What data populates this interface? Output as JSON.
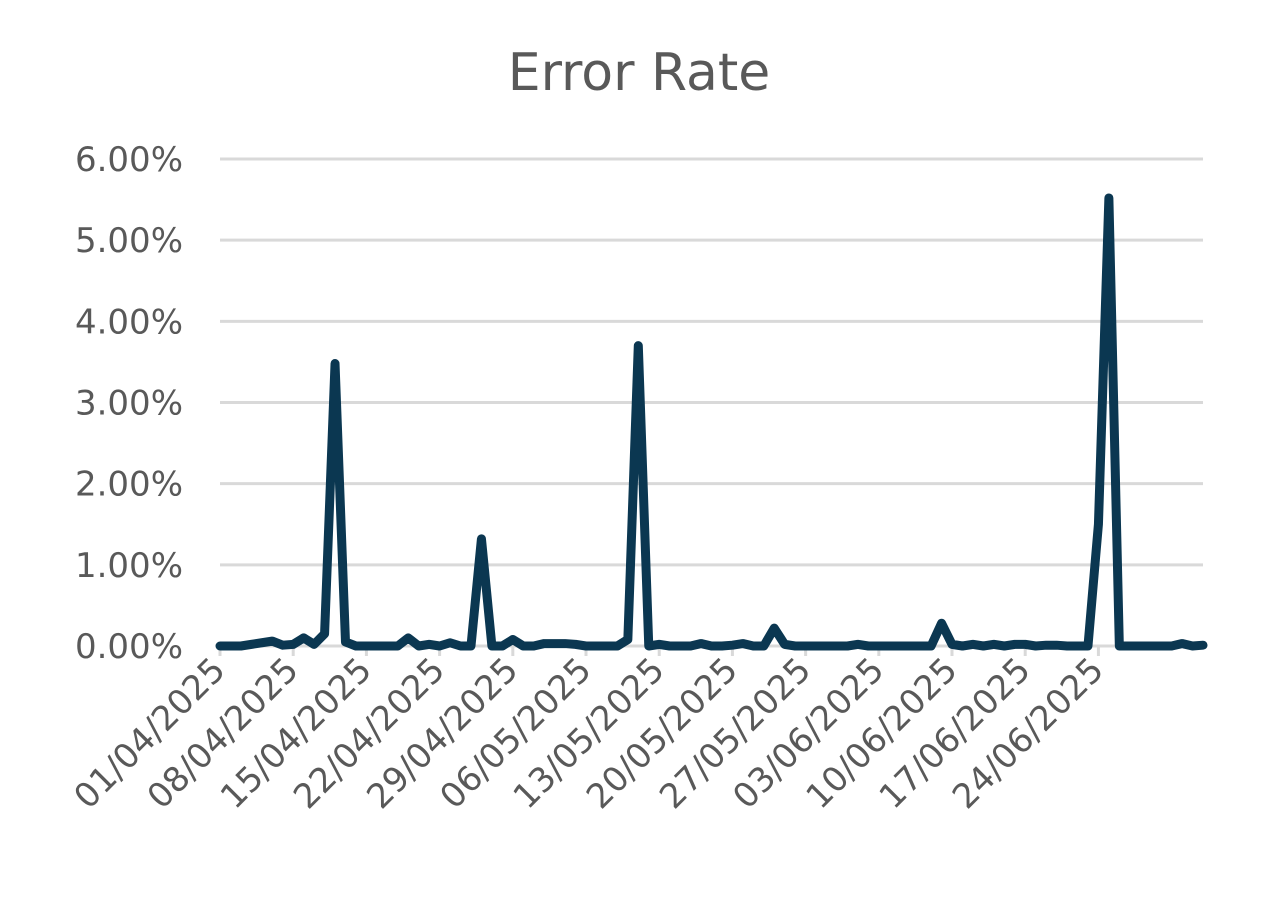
{
  "chart_data": {
    "type": "line",
    "title": "Error Rate",
    "xlabel": "",
    "ylabel": "",
    "ylim": [
      0,
      6
    ],
    "y_ticks": [
      "0.00%",
      "1.00%",
      "2.00%",
      "3.00%",
      "4.00%",
      "5.00%",
      "6.00%"
    ],
    "x_tick_labels": [
      "01/04/2025",
      "08/04/2025",
      "15/04/2025",
      "22/04/2025",
      "29/04/2025",
      "06/05/2025",
      "13/05/2025",
      "20/05/2025",
      "27/05/2025",
      "03/06/2025",
      "10/06/2025",
      "17/06/2025",
      "24/06/2025"
    ],
    "grid": true,
    "legend": "none",
    "color": "#0b3751",
    "series": [
      {
        "values": [
          0,
          0,
          0,
          0.02,
          0.04,
          0.06,
          0.01,
          0.02,
          0.1,
          0.02,
          0.15,
          3.48,
          0.05,
          0,
          0,
          0,
          0,
          0,
          0.1,
          0,
          0.02,
          0,
          0.04,
          0,
          0,
          1.32,
          0,
          0,
          0.08,
          0,
          0,
          0.03,
          0.03,
          0.03,
          0.02,
          0,
          0,
          0,
          0,
          0.08,
          3.7,
          0,
          0.02,
          0,
          0,
          0,
          0.03,
          0,
          0,
          0.01,
          0.03,
          0,
          0,
          0.22,
          0.02,
          0,
          0,
          0,
          0,
          0,
          0,
          0.02,
          0,
          0,
          0,
          0,
          0,
          0,
          0,
          0.28,
          0.02,
          0,
          0.02,
          0,
          0.02,
          0,
          0.02,
          0.02,
          0,
          0.01,
          0.01,
          0,
          0,
          0,
          1.5,
          5.52,
          0,
          0,
          0,
          0,
          0,
          0,
          0.03,
          0,
          0.01
        ]
      }
    ]
  }
}
